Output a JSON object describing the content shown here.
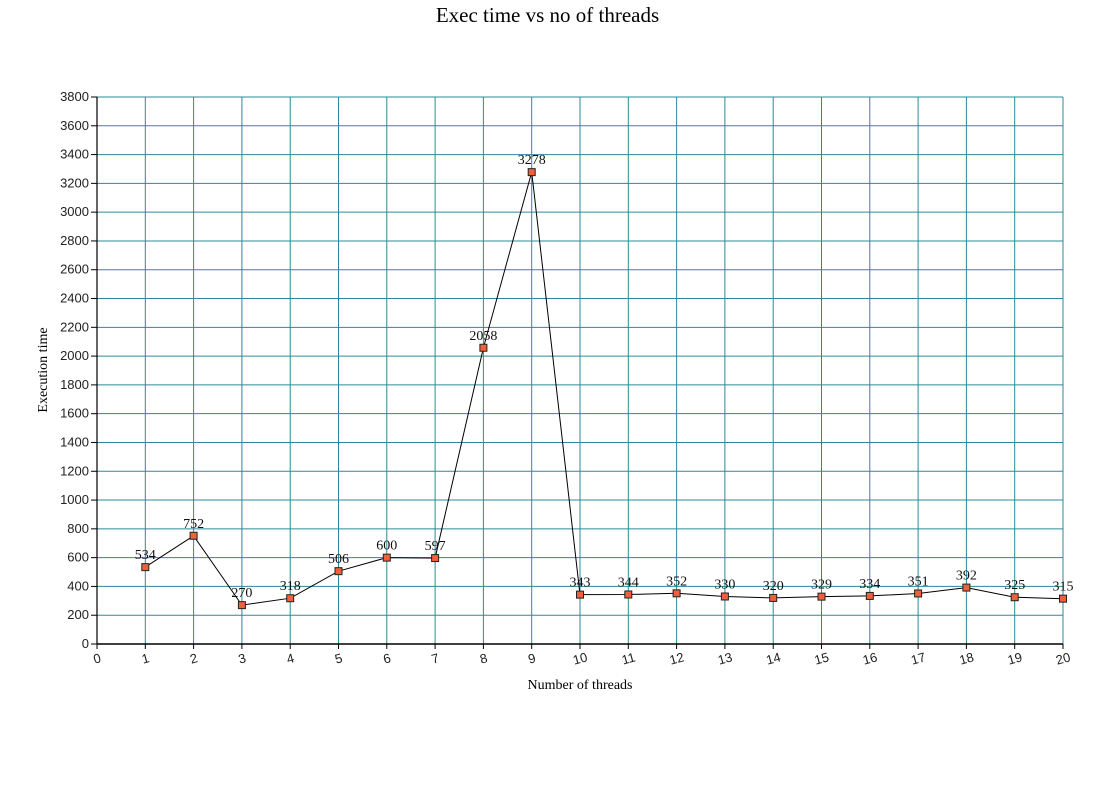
{
  "chart_data": {
    "type": "line",
    "title": "Exec time vs no of threads",
    "xlabel": "Number of threads",
    "ylabel": "Execution time",
    "x": [
      1,
      2,
      3,
      4,
      5,
      6,
      7,
      8,
      9,
      10,
      11,
      12,
      13,
      14,
      15,
      16,
      17,
      18,
      19,
      20
    ],
    "values": [
      534,
      752,
      270,
      318,
      506,
      600,
      597,
      2058,
      3278,
      343,
      344,
      352,
      330,
      320,
      329,
      334,
      351,
      392,
      325,
      315
    ],
    "xlim": [
      0,
      20
    ],
    "ylim": [
      0,
      3800
    ],
    "ytick_step": 200,
    "grid": true,
    "legend": "none",
    "colors": {
      "grid": "#2a8a9a",
      "line": "#000000",
      "marker_fill": "#f0603a",
      "marker_stroke": "#222222"
    }
  }
}
